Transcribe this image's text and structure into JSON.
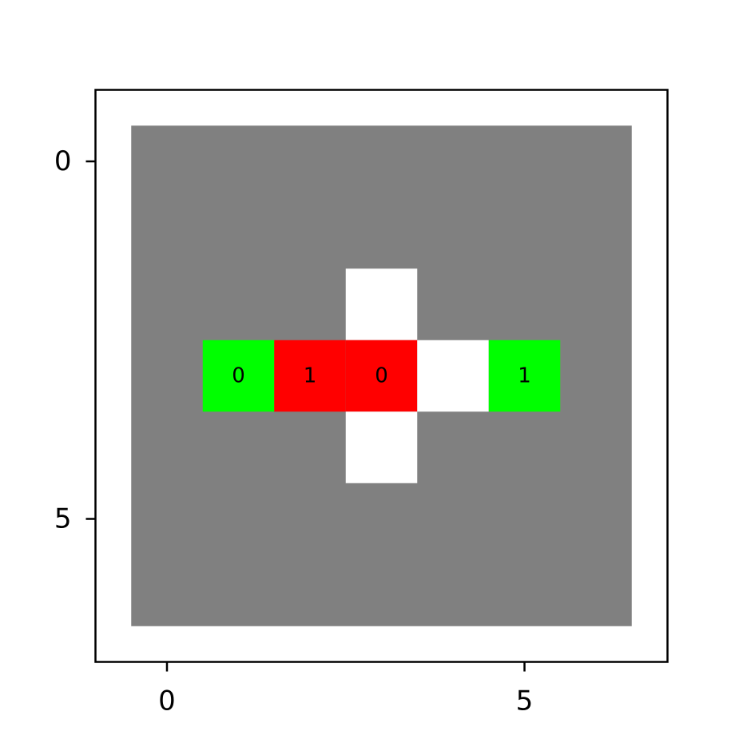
{
  "chart_data": {
    "type": "heatmap",
    "title": "",
    "xlabel": "",
    "ylabel": "",
    "xlim": [
      -1,
      7
    ],
    "ylim": [
      7,
      -1
    ],
    "x_ticks": [
      0,
      5
    ],
    "y_ticks": [
      0,
      5
    ],
    "x_tick_labels": [
      "0",
      "5"
    ],
    "y_tick_labels": [
      "0",
      "5"
    ],
    "grid": false,
    "rows": 7,
    "cols": 7,
    "background_color": "#808080",
    "cells": [
      {
        "row": 2,
        "col": 3,
        "color": "#ffffff",
        "label": ""
      },
      {
        "row": 3,
        "col": 1,
        "color": "#00ff00",
        "label": "0"
      },
      {
        "row": 3,
        "col": 2,
        "color": "#ff0000",
        "label": "1"
      },
      {
        "row": 3,
        "col": 3,
        "color": "#ff0000",
        "label": "0"
      },
      {
        "row": 3,
        "col": 4,
        "color": "#ffffff",
        "label": ""
      },
      {
        "row": 3,
        "col": 5,
        "color": "#00ff00",
        "label": "1"
      },
      {
        "row": 4,
        "col": 3,
        "color": "#ffffff",
        "label": ""
      }
    ]
  }
}
